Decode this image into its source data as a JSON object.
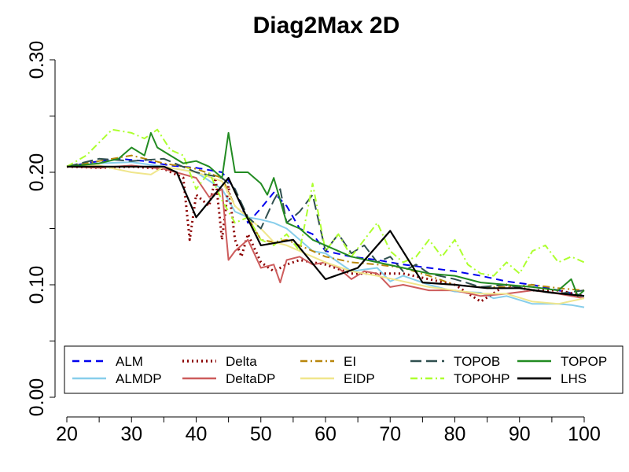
{
  "chart_data": {
    "type": "line",
    "title": "Diag2Max 2D",
    "xlabel": "",
    "ylabel": "",
    "xlim": [
      20,
      100
    ],
    "ylim": [
      0.0,
      0.3
    ],
    "x_ticks": [
      20,
      30,
      40,
      50,
      60,
      70,
      80,
      90,
      100
    ],
    "x_tick_labels": [
      "20",
      "30",
      "40",
      "50",
      "60",
      "70",
      "80",
      "90",
      "100"
    ],
    "y_ticks": [
      0.0,
      0.1,
      0.2,
      0.3
    ],
    "y_tick_labels": [
      "0.00",
      "0.10",
      "0.20",
      "0.30"
    ],
    "grid": false,
    "legend_position": "bottom",
    "series": [
      {
        "name": "ALM",
        "color": "#0000ee",
        "dash": "dashed",
        "width": 2,
        "x": [
          20,
          24,
          28,
          32,
          36,
          40,
          44,
          46,
          48,
          50,
          52,
          54,
          56,
          58,
          60,
          64,
          68,
          72,
          76,
          80,
          84,
          88,
          92,
          96,
          100
        ],
        "y": [
          0.205,
          0.209,
          0.212,
          0.21,
          0.206,
          0.204,
          0.2,
          0.185,
          0.155,
          0.168,
          0.182,
          0.17,
          0.15,
          0.145,
          0.13,
          0.125,
          0.122,
          0.118,
          0.115,
          0.112,
          0.108,
          0.103,
          0.1,
          0.095,
          0.09
        ]
      },
      {
        "name": "ALMDP",
        "color": "#87ceeb",
        "dash": "solid",
        "width": 2,
        "x": [
          20,
          25,
          30,
          35,
          40,
          44,
          46,
          48,
          50,
          52,
          54,
          56,
          58,
          60,
          64,
          68,
          70,
          72,
          76,
          80,
          84,
          86,
          88,
          92,
          96,
          98,
          100
        ],
        "y": [
          0.205,
          0.208,
          0.209,
          0.205,
          0.2,
          0.185,
          0.165,
          0.16,
          0.158,
          0.155,
          0.15,
          0.14,
          0.13,
          0.128,
          0.112,
          0.115,
          0.103,
          0.108,
          0.1,
          0.094,
          0.093,
          0.088,
          0.09,
          0.083,
          0.083,
          0.082,
          0.08
        ]
      },
      {
        "name": "Delta",
        "color": "#8b0000",
        "dash": "dotted",
        "width": 3,
        "x": [
          20,
          25,
          30,
          35,
          38,
          39,
          40,
          42,
          43,
          44,
          45,
          46,
          47,
          48,
          50,
          52,
          54,
          56,
          58,
          60,
          64,
          68,
          72,
          76,
          80,
          84,
          88,
          92,
          96,
          100
        ],
        "y": [
          0.205,
          0.204,
          0.205,
          0.203,
          0.195,
          0.14,
          0.18,
          0.17,
          0.195,
          0.14,
          0.188,
          0.14,
          0.125,
          0.145,
          0.12,
          0.112,
          0.118,
          0.122,
          0.12,
          0.118,
          0.11,
          0.11,
          0.11,
          0.105,
          0.1,
          0.085,
          0.1,
          0.095,
          0.095,
          0.09
        ]
      },
      {
        "name": "DeltaDP",
        "color": "#cd5c5c",
        "dash": "solid",
        "width": 2,
        "x": [
          20,
          25,
          30,
          35,
          40,
          42,
          44,
          45,
          46,
          48,
          50,
          52,
          53,
          54,
          56,
          58,
          60,
          62,
          64,
          66,
          68,
          70,
          72,
          76,
          80,
          84,
          88,
          92,
          96,
          100
        ],
        "y": [
          0.205,
          0.204,
          0.206,
          0.203,
          0.195,
          0.178,
          0.185,
          0.122,
          0.13,
          0.14,
          0.115,
          0.118,
          0.102,
          0.122,
          0.125,
          0.118,
          0.12,
          0.115,
          0.105,
          0.112,
          0.11,
          0.098,
          0.1,
          0.095,
          0.095,
          0.09,
          0.092,
          0.095,
          0.092,
          0.088
        ]
      },
      {
        "name": "EI",
        "color": "#b8860b",
        "dash": "dashdot",
        "width": 2,
        "x": [
          20,
          25,
          30,
          35,
          40,
          44,
          46,
          48,
          50,
          52,
          54,
          56,
          58,
          60,
          64,
          68,
          72,
          76,
          80,
          84,
          88,
          92,
          96,
          100
        ],
        "y": [
          0.205,
          0.21,
          0.215,
          0.208,
          0.203,
          0.195,
          0.17,
          0.16,
          0.14,
          0.138,
          0.14,
          0.135,
          0.13,
          0.125,
          0.12,
          0.118,
          0.115,
          0.108,
          0.1,
          0.098,
          0.098,
          0.1,
          0.097,
          0.095
        ]
      },
      {
        "name": "EIDP",
        "color": "#f0e68c",
        "dash": "solid",
        "width": 2,
        "x": [
          20,
          25,
          30,
          33,
          35,
          40,
          44,
          46,
          48,
          50,
          52,
          54,
          56,
          58,
          60,
          64,
          68,
          72,
          76,
          80,
          84,
          88,
          92,
          96,
          100
        ],
        "y": [
          0.205,
          0.206,
          0.2,
          0.198,
          0.205,
          0.2,
          0.192,
          0.17,
          0.16,
          0.15,
          0.138,
          0.135,
          0.13,
          0.125,
          0.12,
          0.112,
          0.108,
          0.103,
          0.098,
          0.095,
          0.092,
          0.092,
          0.085,
          0.083,
          0.088
        ]
      },
      {
        "name": "TOPOB",
        "color": "#2f4f4f",
        "dash": "longdash",
        "width": 2,
        "x": [
          20,
          25,
          30,
          35,
          40,
          44,
          46,
          48,
          50,
          52,
          53,
          54,
          56,
          58,
          60,
          62,
          64,
          66,
          68,
          70,
          72,
          74,
          76,
          80,
          84,
          88,
          92,
          96,
          100
        ],
        "y": [
          0.205,
          0.212,
          0.21,
          0.212,
          0.2,
          0.195,
          0.185,
          0.16,
          0.15,
          0.175,
          0.185,
          0.155,
          0.165,
          0.18,
          0.13,
          0.145,
          0.128,
          0.135,
          0.12,
          0.125,
          0.112,
          0.118,
          0.11,
          0.105,
          0.098,
          0.1,
          0.095,
          0.092,
          0.095
        ]
      },
      {
        "name": "TOPOHP",
        "color": "#adff2f",
        "dash": "dashdot",
        "width": 2,
        "x": [
          20,
          23,
          27,
          30,
          32,
          34,
          36,
          38,
          40,
          42,
          44,
          46,
          48,
          50,
          52,
          54,
          56,
          58,
          60,
          62,
          64,
          66,
          68,
          70,
          72,
          74,
          76,
          78,
          80,
          82,
          84,
          86,
          88,
          90,
          92,
          94,
          96,
          98,
          100
        ],
        "y": [
          0.205,
          0.215,
          0.238,
          0.235,
          0.23,
          0.238,
          0.22,
          0.215,
          0.185,
          0.2,
          0.175,
          0.155,
          0.16,
          0.14,
          0.135,
          0.145,
          0.13,
          0.19,
          0.13,
          0.145,
          0.125,
          0.14,
          0.155,
          0.13,
          0.12,
          0.125,
          0.14,
          0.125,
          0.14,
          0.118,
          0.11,
          0.108,
          0.12,
          0.11,
          0.13,
          0.135,
          0.12,
          0.125,
          0.12
        ]
      },
      {
        "name": "TOPOP",
        "color": "#228b22",
        "dash": "solid",
        "width": 2,
        "x": [
          20,
          25,
          28,
          30,
          32,
          33,
          34,
          36,
          38,
          40,
          42,
          44,
          45,
          46,
          48,
          50,
          51,
          52,
          54,
          56,
          58,
          60,
          64,
          68,
          72,
          76,
          80,
          84,
          88,
          92,
          96,
          98,
          99,
          100
        ],
        "y": [
          0.205,
          0.208,
          0.212,
          0.222,
          0.215,
          0.235,
          0.222,
          0.215,
          0.208,
          0.21,
          0.205,
          0.195,
          0.235,
          0.2,
          0.2,
          0.19,
          0.18,
          0.195,
          0.155,
          0.15,
          0.14,
          0.135,
          0.125,
          0.12,
          0.115,
          0.11,
          0.108,
          0.102,
          0.1,
          0.098,
          0.095,
          0.105,
          0.09,
          0.095
        ]
      },
      {
        "name": "LHS",
        "color": "#000000",
        "dash": "solid",
        "width": 2.2,
        "x": [
          20,
          25,
          30,
          35,
          37,
          40,
          45,
          47,
          50,
          55,
          60,
          65,
          70,
          75,
          80,
          85,
          90,
          95,
          100
        ],
        "y": [
          0.205,
          0.205,
          0.205,
          0.205,
          0.2,
          0.16,
          0.195,
          0.17,
          0.135,
          0.14,
          0.105,
          0.115,
          0.148,
          0.102,
          0.1,
          0.097,
          0.097,
          0.093,
          0.09
        ]
      }
    ]
  }
}
